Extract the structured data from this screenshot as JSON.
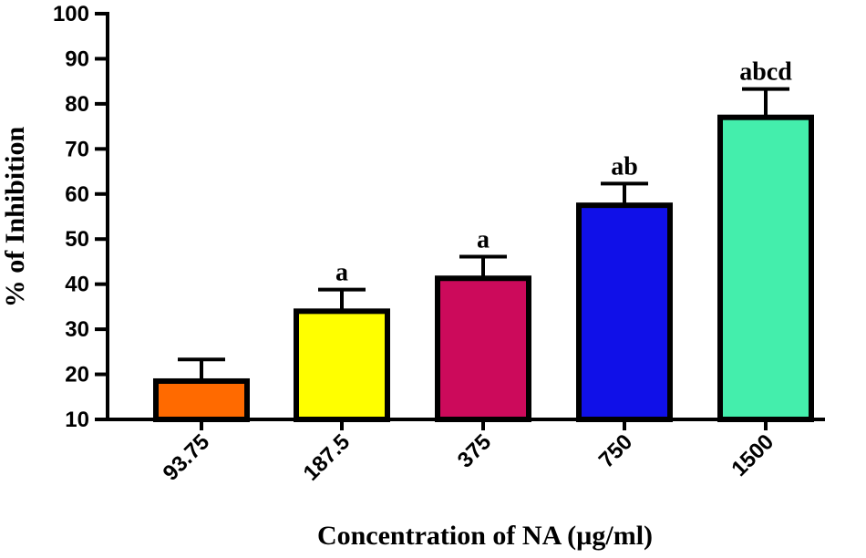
{
  "chart_data": {
    "type": "bar",
    "title": "",
    "xlabel": "Concentration of NA (µg/ml)",
    "ylabel": "% of Inhibition",
    "ylim": [
      10,
      100
    ],
    "yticks": [
      10,
      20,
      30,
      40,
      50,
      60,
      70,
      80,
      90,
      100
    ],
    "categories": [
      "93.75",
      "187.5",
      "375",
      "750",
      "1500"
    ],
    "values": [
      18.5,
      34,
      41.3,
      57.5,
      77
    ],
    "errors": [
      4.8,
      4.8,
      4.8,
      4.8,
      6.3
    ],
    "significance": [
      "",
      "a",
      "a",
      "ab",
      "abcd"
    ],
    "colors": [
      "#ff6a00",
      "#ffff00",
      "#cc0a5b",
      "#1010e8",
      "#44eeac"
    ]
  }
}
